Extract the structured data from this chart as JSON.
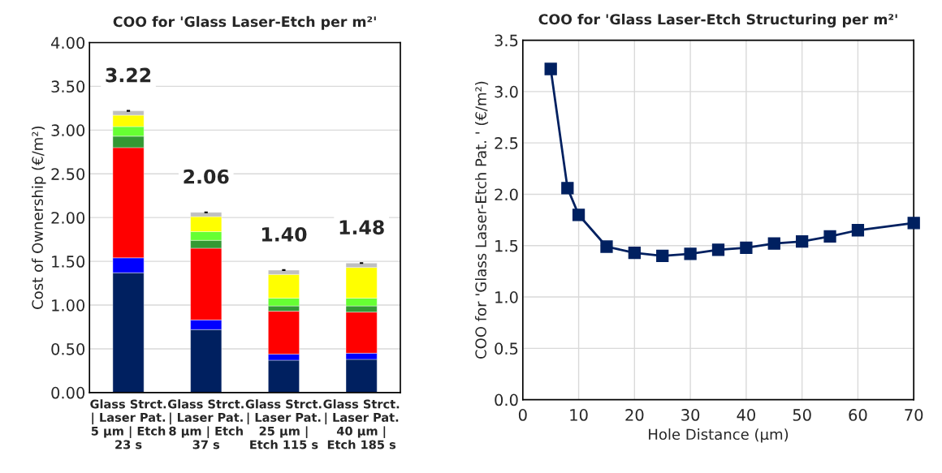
{
  "chart_data": [
    {
      "type": "bar",
      "stacked": true,
      "title": "COO for 'Glass Laser-Etch per m²'",
      "ylabel": "Cost of Ownership (€/m²)",
      "categories": [
        "Glass Strct.\n| Laser Pat.\n5 µm | Etch\n23 s",
        "Glass Strct.\n| Laser Pat.\n8 µm | Etch\n37 s",
        "Glass Strct.\n| Laser Pat.\n25 µm |\nEtch 115 s",
        "Glass Strct.\n| Laser Pat.\n40 µm |\nEtch 185 s"
      ],
      "series": [
        {
          "color": "#002060",
          "values": [
            1.37,
            0.72,
            0.37,
            0.38
          ]
        },
        {
          "color": "#0000ff",
          "values": [
            0.17,
            0.11,
            0.07,
            0.07
          ]
        },
        {
          "color": "#ff0000",
          "values": [
            1.26,
            0.82,
            0.49,
            0.47
          ]
        },
        {
          "color": "#339933",
          "values": [
            0.13,
            0.09,
            0.06,
            0.07
          ]
        },
        {
          "color": "#66ff33",
          "values": [
            0.11,
            0.1,
            0.09,
            0.09
          ]
        },
        {
          "color": "#ffff00",
          "values": [
            0.13,
            0.17,
            0.27,
            0.35
          ]
        },
        {
          "color": "#bfbfbf",
          "values": [
            0.05,
            0.05,
            0.05,
            0.05
          ],
          "errors": [
            0.01,
            0.01,
            0.01,
            0.01
          ]
        }
      ],
      "totals": [
        "3.22",
        "2.06",
        "1.40",
        "1.48"
      ],
      "ylim": [
        0,
        4
      ],
      "yticks": [
        {
          "value": 0,
          "label": "0.00"
        },
        {
          "value": 0.5,
          "label": "0.50"
        },
        {
          "value": 1,
          "label": "1.00"
        },
        {
          "value": 1.5,
          "label": "1.50"
        },
        {
          "value": 2,
          "label": "2.00"
        },
        {
          "value": 2.5,
          "label": "2.50"
        },
        {
          "value": 3,
          "label": "3.00"
        },
        {
          "value": 3.5,
          "label": "3.50"
        },
        {
          "value": 4,
          "label": "4.00"
        }
      ],
      "grid": "y",
      "legend": false
    },
    {
      "type": "line",
      "title": "COO for 'Glass Laser-Etch Structuring per m²'",
      "xlabel": "Hole Distance (µm)",
      "ylabel": "COO for 'Glass Laser-Etch Pat. ' (€/m²)",
      "x": [
        5,
        8,
        10,
        15,
        20,
        25,
        30,
        35,
        40,
        45,
        50,
        55,
        60,
        70
      ],
      "series": [
        {
          "color": "#002060",
          "values": [
            3.22,
            2.06,
            1.8,
            1.49,
            1.43,
            1.4,
            1.42,
            1.46,
            1.48,
            1.52,
            1.54,
            1.59,
            1.65,
            1.72
          ]
        }
      ],
      "marker": "square",
      "line_style": "solid",
      "xlim": [
        0,
        70
      ],
      "xticks": [
        0,
        10,
        20,
        30,
        40,
        50,
        60,
        70
      ],
      "ylim": [
        0,
        3.5
      ],
      "yticks": [
        {
          "value": 0,
          "label": "0.0"
        },
        {
          "value": 0.5,
          "label": "0.5"
        },
        {
          "value": 1,
          "label": "1.0"
        },
        {
          "value": 1.5,
          "label": "1.5"
        },
        {
          "value": 2,
          "label": "2.0"
        },
        {
          "value": 2.5,
          "label": "2.5"
        },
        {
          "value": 3,
          "label": "3.0"
        },
        {
          "value": 3.5,
          "label": "3.5"
        }
      ],
      "grid": true,
      "legend": false
    }
  ]
}
